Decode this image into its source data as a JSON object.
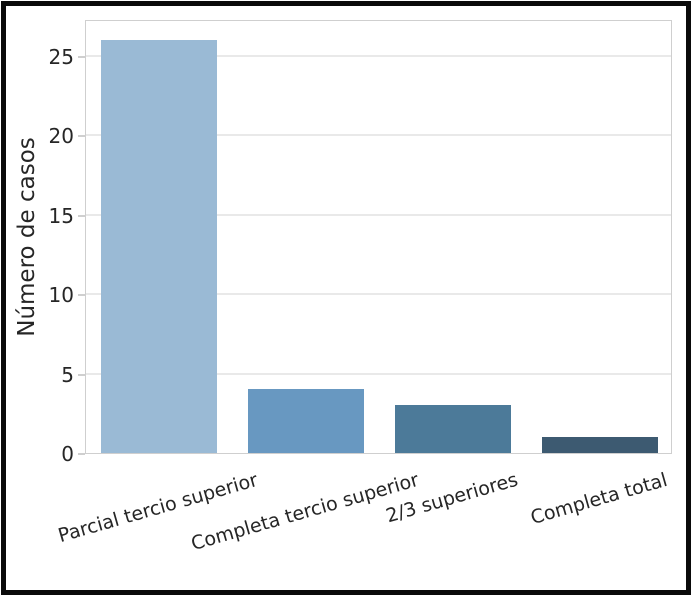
{
  "chart_data": {
    "type": "bar",
    "categories": [
      "Parcial tercio superior",
      "Completa tercio superior",
      "2/3 superiores",
      "Completa total"
    ],
    "values": [
      26,
      4,
      3,
      1
    ],
    "title": "",
    "xlabel": "",
    "ylabel": "Número de casos",
    "ylim": [
      0,
      27.3
    ],
    "yticks": [
      0,
      5,
      10,
      15,
      20,
      25
    ],
    "grid": true,
    "legend": false,
    "bar_colors": [
      "#9abad5",
      "#6898c1",
      "#4c7a99",
      "#3d5a71"
    ],
    "x_tick_rotation_deg": -16
  },
  "style": {
    "grid_color": "#e9e9e9",
    "spine_color": "#cfcfcf",
    "tick_color": "#cfcfcf",
    "text_color": "#262626",
    "frame_border_color": "#0a0a0a",
    "background": "#ffffff"
  }
}
